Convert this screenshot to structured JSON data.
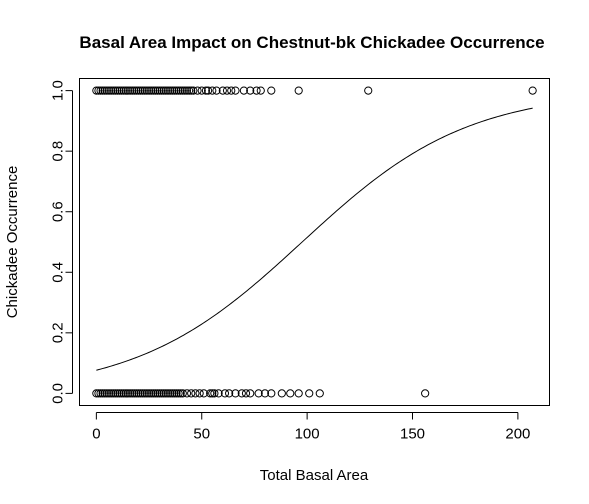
{
  "chart_data": {
    "type": "scatter",
    "title": "Basal Area Impact on Chestnut-bk Chickadee Occurrence",
    "xlabel": "Total Basal Area",
    "ylabel": "Chickadee Occurrence",
    "xlim": [
      -8,
      215
    ],
    "ylim": [
      -0.04,
      1.04
    ],
    "x_ticks": [
      0,
      50,
      100,
      150,
      200
    ],
    "y_ticks": [
      0.0,
      0.2,
      0.4,
      0.6,
      0.8,
      1.0
    ],
    "x_tick_labels": [
      "0",
      "50",
      "100",
      "150",
      "200"
    ],
    "y_tick_labels": [
      "0.0",
      "0.2",
      "0.4",
      "0.6",
      "0.8",
      "1.0"
    ],
    "grid": false,
    "legend": "none",
    "series": [
      {
        "kind": "points",
        "y": 1,
        "x": [
          0,
          1,
          2,
          3,
          4,
          5,
          6,
          7,
          8,
          9,
          10,
          11,
          12,
          13,
          14,
          15,
          16,
          17,
          18,
          19,
          20,
          21,
          22,
          23,
          24,
          25,
          26,
          27,
          28,
          29,
          30,
          31,
          32,
          33,
          34,
          35,
          36,
          37,
          38,
          39,
          40,
          41,
          42,
          43,
          44,
          45,
          46,
          48,
          50,
          52,
          53,
          55,
          57,
          60,
          62,
          64,
          66,
          70,
          73,
          76,
          78,
          83,
          96,
          129,
          207
        ]
      },
      {
        "kind": "points",
        "y": 0,
        "x": [
          0,
          1,
          2,
          3,
          4,
          5,
          6,
          7,
          8,
          9,
          10,
          11,
          12,
          13,
          14,
          15,
          16,
          17,
          18,
          19,
          20,
          21,
          22,
          23,
          24,
          25,
          26,
          27,
          28,
          29,
          30,
          31,
          32,
          33,
          34,
          35,
          36,
          37,
          38,
          39,
          40,
          41,
          43,
          45,
          47,
          49,
          51,
          54,
          55,
          56,
          58,
          61,
          63,
          66,
          69,
          71,
          73,
          77,
          80,
          83,
          88,
          92,
          96,
          101,
          106,
          156
        ]
      },
      {
        "kind": "curve",
        "model": "logistic",
        "intercept": -2.49,
        "slope": 0.0255,
        "x_range": [
          0,
          207
        ]
      }
    ]
  }
}
